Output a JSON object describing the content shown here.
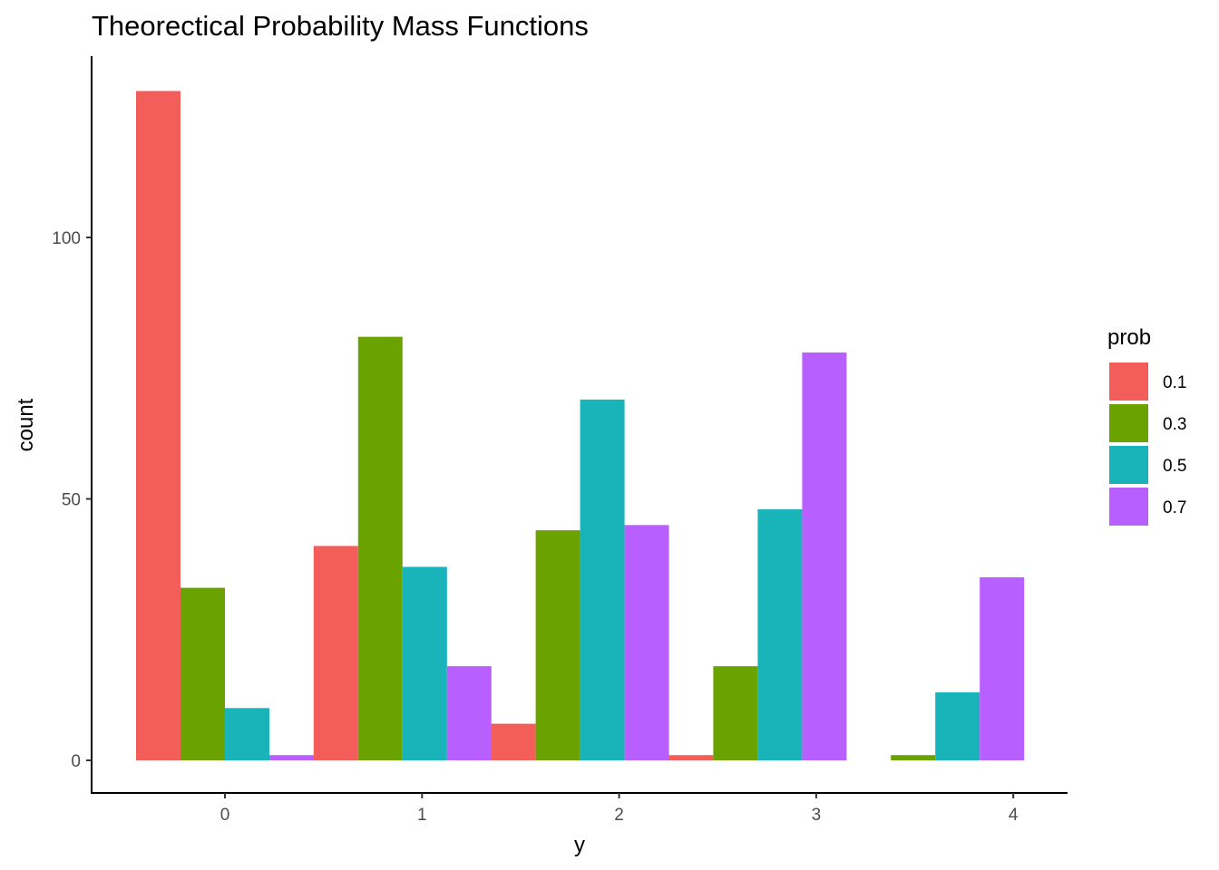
{
  "chart_data": {
    "type": "bar",
    "title": "Theorectical Probability Mass Functions",
    "xlabel": "y",
    "ylabel": "count",
    "categories": [
      "0",
      "1",
      "2",
      "3",
      "4"
    ],
    "x_ticks": [
      "0",
      "1",
      "2",
      "3",
      "4"
    ],
    "y_ticks": [
      0,
      50,
      100
    ],
    "ylim": [
      -6,
      135
    ],
    "grid": false,
    "legend": {
      "title": "prob",
      "placement": "right",
      "entries": [
        "0.1",
        "0.3",
        "0.5",
        "0.7"
      ]
    },
    "series": [
      {
        "name": "0.1",
        "color": "#F35E5A",
        "values": [
          128,
          41,
          7,
          1,
          0
        ]
      },
      {
        "name": "0.3",
        "color": "#6AA300",
        "values": [
          33,
          81,
          44,
          18,
          1
        ]
      },
      {
        "name": "0.5",
        "color": "#19B4B9",
        "values": [
          10,
          37,
          69,
          48,
          13
        ]
      },
      {
        "name": "0.7",
        "color": "#B85FFF",
        "values": [
          1,
          18,
          45,
          78,
          35
        ]
      }
    ]
  }
}
